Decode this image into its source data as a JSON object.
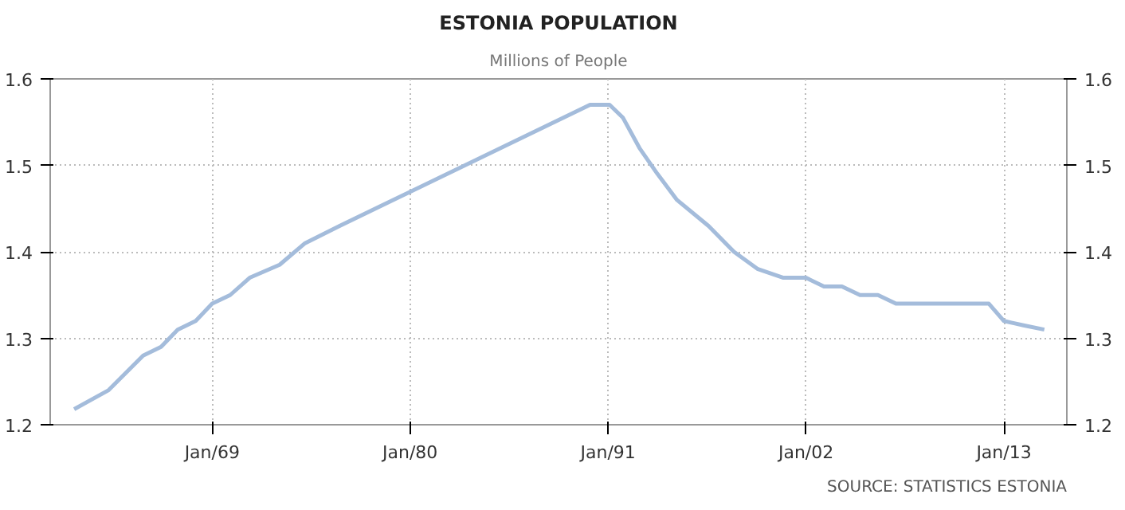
{
  "chart_data": {
    "type": "line",
    "title": "ESTONIA POPULATION",
    "subtitle": "Millions of People",
    "annotations": [
      "SOURCE: STATISTICS ESTONIA"
    ],
    "x": [
      "1961-05",
      "1963-04",
      "1965-03",
      "1966-03",
      "1967-02",
      "1968-02",
      "1969-01",
      "1970-01",
      "1971-02",
      "1972-10",
      "1974-03",
      "1976-02",
      "1990-01",
      "1991-02",
      "1991-11",
      "1992-10",
      "1993-10",
      "1994-11",
      "1996-08",
      "1998-01",
      "1999-05",
      "2000-10",
      "2002-01",
      "2003-01",
      "2004-01",
      "2005-01",
      "2006-01",
      "2007-01",
      "2011-01",
      "2012-03",
      "2013-01",
      "2014-02",
      "2015-04"
    ],
    "series": [
      {
        "color": "#a4bcdb",
        "values": [
          1.218,
          1.24,
          1.28,
          1.29,
          1.31,
          1.32,
          1.34,
          1.35,
          1.37,
          1.385,
          1.41,
          1.43,
          1.57,
          1.57,
          1.555,
          1.52,
          1.49,
          1.46,
          1.43,
          1.4,
          1.38,
          1.37,
          1.37,
          1.36,
          1.36,
          1.35,
          1.35,
          1.34,
          1.34,
          1.34,
          1.32,
          1.315,
          1.31
        ]
      }
    ],
    "xlim": [
      "1960-01",
      "2016-07"
    ],
    "xticks": [
      {
        "value": "1969-01",
        "label": "Jan/69"
      },
      {
        "value": "1980-01",
        "label": "Jan/80"
      },
      {
        "value": "1991-01",
        "label": "Jan/91"
      },
      {
        "value": "2002-01",
        "label": "Jan/02"
      },
      {
        "value": "2013-01",
        "label": "Jan/13"
      }
    ],
    "ylim": [
      1.2,
      1.6
    ],
    "yticks": [
      1.2,
      1.3,
      1.4,
      1.5,
      1.6
    ],
    "y2lim": [
      1.2,
      1.6
    ],
    "y2ticks": [
      1.2,
      1.3,
      1.4,
      1.5,
      1.6
    ],
    "grid": true,
    "marker": "none",
    "line_style": "solid"
  }
}
